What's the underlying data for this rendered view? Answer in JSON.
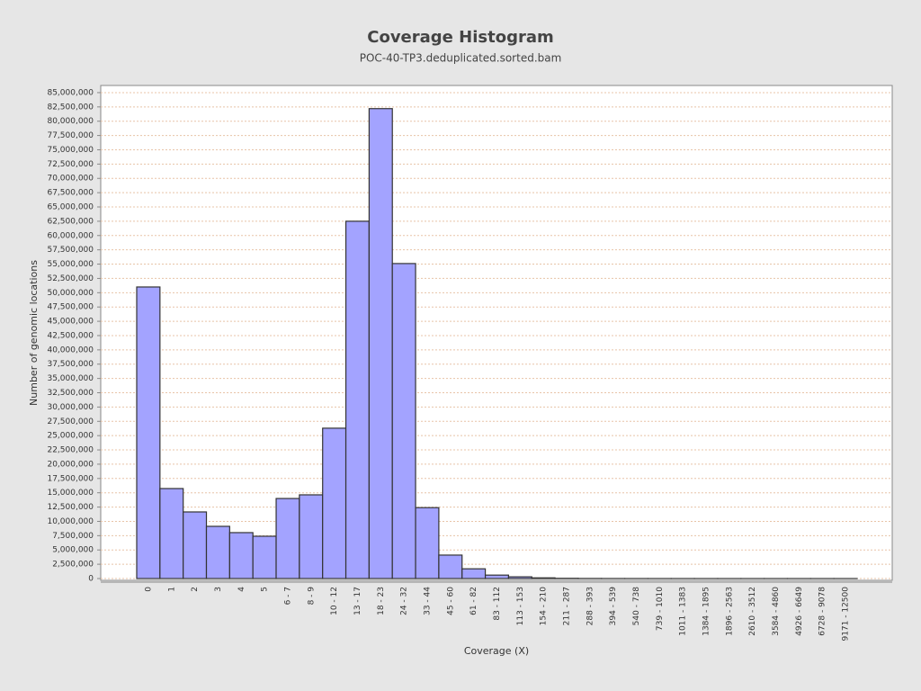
{
  "chart_data": {
    "type": "bar",
    "title": "Coverage Histogram",
    "subtitle": "POC-40-TP3.deduplicated.sorted.bam",
    "x_label": "Coverage (X)",
    "y_label": "Number of genomic locations",
    "categories": [
      "0",
      "1",
      "2",
      "3",
      "4",
      "5",
      "6 - 7",
      "8 - 9",
      "10 - 12",
      "13 - 17",
      "18 - 23",
      "24 - 32",
      "33 - 44",
      "45 - 60",
      "61 - 82",
      "83 - 112",
      "113 - 153",
      "154 - 210",
      "211 - 287",
      "288 - 393",
      "394 - 539",
      "540 - 738",
      "739 - 1010",
      "1011 - 1383",
      "1384 - 1895",
      "1896 - 2563",
      "2610 - 3512",
      "3584 - 4860",
      "4926 - 6649",
      "6728 - 9078",
      "9171 - 12500"
    ],
    "values": [
      51000000,
      15740000,
      11650000,
      9130000,
      8030000,
      7400000,
      14000000,
      14640000,
      26300000,
      62500000,
      82200000,
      55100000,
      12400000,
      4100000,
      1700000,
      600000,
      300000,
      120000,
      40000,
      15000,
      6000,
      3000,
      1500,
      800,
      500,
      300,
      200,
      100,
      50,
      30,
      10
    ],
    "color": "#a3a3ff",
    "grid": true,
    "ylim": [
      0,
      86250000
    ],
    "yticks": [
      {
        "value": 0,
        "label": "0"
      },
      {
        "value": 2500000,
        "label": "2,500,000"
      },
      {
        "value": 5000000,
        "label": "5,000,000"
      },
      {
        "value": 7500000,
        "label": "7,500,000"
      },
      {
        "value": 10000000,
        "label": "10,000,000"
      },
      {
        "value": 12500000,
        "label": "12,500,000"
      },
      {
        "value": 15000000,
        "label": "15,000,000"
      },
      {
        "value": 17500000,
        "label": "17,500,000"
      },
      {
        "value": 20000000,
        "label": "20,000,000"
      },
      {
        "value": 22500000,
        "label": "22,500,000"
      },
      {
        "value": 25000000,
        "label": "25,000,000"
      },
      {
        "value": 27500000,
        "label": "27,500,000"
      },
      {
        "value": 30000000,
        "label": "30,000,000"
      },
      {
        "value": 32500000,
        "label": "32,500,000"
      },
      {
        "value": 35000000,
        "label": "35,000,000"
      },
      {
        "value": 37500000,
        "label": "37,500,000"
      },
      {
        "value": 40000000,
        "label": "40,000,000"
      },
      {
        "value": 42500000,
        "label": "42,500,000"
      },
      {
        "value": 45000000,
        "label": "45,000,000"
      },
      {
        "value": 47500000,
        "label": "47,500,000"
      },
      {
        "value": 50000000,
        "label": "50,000,000"
      },
      {
        "value": 52500000,
        "label": "52,500,000"
      },
      {
        "value": 55000000,
        "label": "55,000,000"
      },
      {
        "value": 57500000,
        "label": "57,500,000"
      },
      {
        "value": 60000000,
        "label": "60,000,000"
      },
      {
        "value": 62500000,
        "label": "62,500,000"
      },
      {
        "value": 65000000,
        "label": "65,000,000"
      },
      {
        "value": 67500000,
        "label": "67,500,000"
      },
      {
        "value": 70000000,
        "label": "70,000,000"
      },
      {
        "value": 72500000,
        "label": "72,500,000"
      },
      {
        "value": 75000000,
        "label": "75,000,000"
      },
      {
        "value": 77500000,
        "label": "77,500,000"
      },
      {
        "value": 80000000,
        "label": "80,000,000"
      },
      {
        "value": 82500000,
        "label": "82,500,000"
      },
      {
        "value": 85000000,
        "label": "85,000,000"
      }
    ]
  }
}
